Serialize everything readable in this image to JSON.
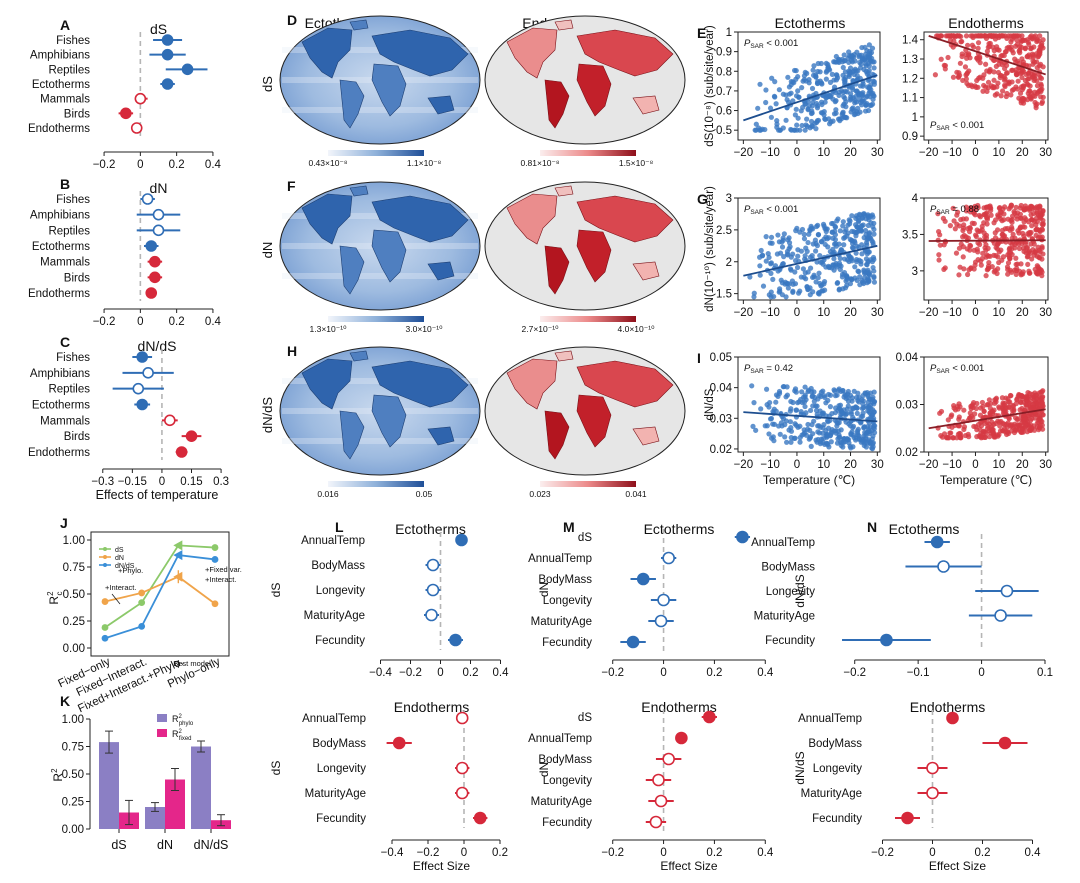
{
  "colors": {
    "ecto": "#2f6db5",
    "endo": "#d6283a",
    "blue_fill": "#3a78c2",
    "red_fill": "#d63a44",
    "dashed": "#b5b5b5",
    "purple": "#8b7fc4",
    "pink": "#e4268a",
    "green": "#8cc96a",
    "orange": "#f0a44a",
    "sky": "#3a8fd8"
  },
  "row_labels": {
    "ds": "dS",
    "dn": "dN",
    "dnds": "dN/dS"
  },
  "panel_letters": {
    "A": "A",
    "B": "B",
    "C": "C",
    "D": "D",
    "E": "E",
    "F": "F",
    "G": "G",
    "H": "H",
    "I": "I",
    "J": "J",
    "K": "K",
    "L": "L",
    "M": "M",
    "N": "N"
  },
  "abc_panels": [
    {
      "letter": "A",
      "title": "dS",
      "xlim": [
        -0.25,
        0.45
      ],
      "ticks": [
        -0.2,
        0,
        0.2,
        0.4
      ],
      "rows": [
        {
          "label": "Fishes",
          "est": 0.15,
          "lo": 0.07,
          "hi": 0.23,
          "group": "ecto",
          "filled": true
        },
        {
          "label": "Amphibians",
          "est": 0.15,
          "lo": 0.05,
          "hi": 0.25,
          "group": "ecto",
          "filled": true
        },
        {
          "label": "Reptiles",
          "est": 0.26,
          "lo": 0.14,
          "hi": 0.37,
          "group": "ecto",
          "filled": true
        },
        {
          "label": "Ectotherms",
          "est": 0.15,
          "lo": 0.11,
          "hi": 0.19,
          "group": "ecto",
          "filled": true
        },
        {
          "label": "Mammals",
          "est": 0.0,
          "lo": -0.03,
          "hi": 0.04,
          "group": "endo",
          "filled": false
        },
        {
          "label": "Birds",
          "est": -0.08,
          "lo": -0.12,
          "hi": -0.04,
          "group": "endo",
          "filled": true
        },
        {
          "label": "Endotherms",
          "est": -0.02,
          "lo": -0.05,
          "hi": 0.01,
          "group": "endo",
          "filled": false
        }
      ],
      "xlabel": ""
    },
    {
      "letter": "B",
      "title": "dN",
      "xlim": [
        -0.25,
        0.45
      ],
      "ticks": [
        -0.2,
        0,
        0.2,
        0.4
      ],
      "rows": [
        {
          "label": "Fishes",
          "est": 0.04,
          "lo": 0.0,
          "hi": 0.08,
          "group": "ecto",
          "filled": false
        },
        {
          "label": "Amphibians",
          "est": 0.1,
          "lo": -0.02,
          "hi": 0.22,
          "group": "ecto",
          "filled": false
        },
        {
          "label": "Reptiles",
          "est": 0.1,
          "lo": -0.02,
          "hi": 0.22,
          "group": "ecto",
          "filled": false
        },
        {
          "label": "Ectotherms",
          "est": 0.06,
          "lo": 0.02,
          "hi": 0.1,
          "group": "ecto",
          "filled": true
        },
        {
          "label": "Mammals",
          "est": 0.08,
          "lo": 0.04,
          "hi": 0.12,
          "group": "endo",
          "filled": true
        },
        {
          "label": "Birds",
          "est": 0.08,
          "lo": 0.04,
          "hi": 0.12,
          "group": "endo",
          "filled": true
        },
        {
          "label": "Endotherms",
          "est": 0.06,
          "lo": 0.03,
          "hi": 0.09,
          "group": "endo",
          "filled": true
        }
      ],
      "xlabel": ""
    },
    {
      "letter": "C",
      "title": "dN/dS",
      "xlim": [
        -0.38,
        0.33
      ],
      "ticks": [
        -0.3,
        -0.15,
        0,
        0.15,
        0.3
      ],
      "ticklabels": [
        "−0.3",
        "−0.15",
        "0",
        "0.15",
        "0.3"
      ],
      "rows": [
        {
          "label": "Fishes",
          "est": -0.1,
          "lo": -0.15,
          "hi": -0.05,
          "group": "ecto",
          "filled": true
        },
        {
          "label": "Amphibians",
          "est": -0.07,
          "lo": -0.2,
          "hi": 0.06,
          "group": "ecto",
          "filled": false
        },
        {
          "label": "Reptiles",
          "est": -0.12,
          "lo": -0.25,
          "hi": 0.01,
          "group": "ecto",
          "filled": false
        },
        {
          "label": "Ectotherms",
          "est": -0.1,
          "lo": -0.14,
          "hi": -0.06,
          "group": "ecto",
          "filled": true
        },
        {
          "label": "Mammals",
          "est": 0.04,
          "lo": 0.0,
          "hi": 0.08,
          "group": "endo",
          "filled": false
        },
        {
          "label": "Birds",
          "est": 0.15,
          "lo": 0.1,
          "hi": 0.2,
          "group": "endo",
          "filled": true
        },
        {
          "label": "Endotherms",
          "est": 0.1,
          "lo": 0.07,
          "hi": 0.13,
          "group": "endo",
          "filled": true
        }
      ],
      "xlabel": "Effects of temperature"
    }
  ],
  "maps": {
    "col_titles": {
      "ecto": "Ectotherms",
      "endo": "Endotherms"
    },
    "rows": [
      {
        "letter": "D",
        "label": "dS",
        "ecto_min": "0.43×10⁻⁸",
        "ecto_max": "1.1×10⁻⁸",
        "endo_min": "0.81×10⁻⁸",
        "endo_max": "1.5×10⁻⁸"
      },
      {
        "letter": "F",
        "label": "dN",
        "ecto_min": "1.3×10⁻¹⁰",
        "ecto_max": "3.0×10⁻¹⁰",
        "endo_min": "2.7×10⁻¹⁰",
        "endo_max": "4.0×10⁻¹⁰"
      },
      {
        "letter": "H",
        "label": "dN/dS",
        "ecto_min": "0.016",
        "ecto_max": "0.05",
        "endo_min": "0.023",
        "endo_max": "0.041"
      }
    ]
  },
  "scatter": {
    "col_titles": {
      "ecto": "Ectotherms",
      "endo": "Endotherms"
    },
    "xlabel": "Temperature (℃)",
    "xticks": [
      -20,
      -10,
      0,
      10,
      20,
      30
    ],
    "rows": [
      {
        "letter": "E",
        "ylabel": "dS(10⁻⁸) (sub/site/year)",
        "ecto": {
          "ylim": [
            0.45,
            1.0
          ],
          "yticks": [
            0.5,
            0.6,
            0.7,
            0.8,
            0.9,
            1.0
          ],
          "p_prefix": "P",
          "p_sub": "SAR",
          "p_value": " < 0.001",
          "p_pos": "top",
          "trend": [
            0.55,
            0.78
          ],
          "base": [
            0.5,
            0.95
          ],
          "slope": 0.0075
        },
        "endo": {
          "ylim": [
            0.88,
            1.44
          ],
          "yticks": [
            0.9,
            1.0,
            1.1,
            1.2,
            1.3,
            1.4
          ],
          "p_prefix": "P",
          "p_sub": "SAR",
          "p_value": " < 0.001",
          "p_pos": "bottom",
          "trend": [
            1.42,
            1.22
          ],
          "base": [
            0.9,
            1.42
          ],
          "slope": -0.004
        }
      },
      {
        "letter": "G",
        "ylabel": "dN(10⁻¹⁰) (sub/site/year)",
        "ecto": {
          "ylim": [
            1.4,
            3.0
          ],
          "yticks": [
            1.5,
            2.0,
            2.5,
            3.0
          ],
          "p_prefix": "P",
          "p_sub": "SAR",
          "p_value": " < 0.001",
          "p_pos": "top",
          "trend": [
            1.78,
            2.25
          ],
          "base": [
            1.45,
            2.95
          ],
          "slope": 0.012
        },
        "endo": {
          "ylim": [
            2.6,
            4.0
          ],
          "yticks": [
            3.0,
            3.5,
            4.0
          ],
          "p_prefix": "P",
          "p_sub": "SAR",
          "p_value": " = 0.88",
          "p_pos": "top",
          "trend": [
            3.41,
            3.42
          ],
          "base": [
            2.65,
            3.95
          ],
          "slope": 0.0
        }
      },
      {
        "letter": "I",
        "ylabel": "dN/dS",
        "ecto": {
          "ylim": [
            0.019,
            0.05
          ],
          "yticks": [
            0.02,
            0.03,
            0.04,
            0.05
          ],
          "p_prefix": "P",
          "p_sub": "SAR",
          "p_value": " = 0.42",
          "p_pos": "top",
          "trend": [
            0.032,
            0.029
          ],
          "base": [
            0.02,
            0.046
          ],
          "slope": -0.0001
        },
        "endo": {
          "ylim": [
            0.02,
            0.04
          ],
          "yticks": [
            0.02,
            0.03,
            0.04
          ],
          "p_prefix": "P",
          "p_sub": "SAR",
          "p_value": " < 0.001",
          "p_pos": "top",
          "trend": [
            0.025,
            0.029
          ],
          "base": [
            0.023,
            0.034
          ],
          "slope": 0.00012
        }
      }
    ]
  },
  "chart_data": [
    {
      "type": "line",
      "panel": "J",
      "ylabel": "R",
      "ylabel_sup": "2",
      "ylabel_sub": "c",
      "ylim": [
        0,
        1
      ],
      "yticks": [
        "0.00",
        "0.25",
        "0.50",
        "0.75",
        "1.00"
      ],
      "categories": [
        "Fixed−only",
        "Fixed−Interact.",
        "Fixed+Interact.+Phylo.",
        "Phylo−only"
      ],
      "series": [
        {
          "name": "dS",
          "color": "green",
          "values": [
            0.19,
            0.42,
            0.95,
            0.93
          ]
        },
        {
          "name": "dN",
          "color": "orange",
          "values": [
            0.43,
            0.51,
            0.66,
            0.41
          ]
        },
        {
          "name": "dN/dS",
          "color": "sky",
          "values": [
            0.09,
            0.2,
            0.86,
            0.82
          ]
        }
      ],
      "annotations": [
        "+Interact.",
        "+Phylo.",
        "+Fixed var.",
        "+Interact.",
        "Best model"
      ]
    },
    {
      "type": "bar",
      "panel": "K",
      "ylabel": "R",
      "ylabel_sup": "2",
      "ylim": [
        0,
        1
      ],
      "yticks": [
        "0.00",
        "0.25",
        "0.50",
        "0.75",
        "1.00"
      ],
      "categories": [
        "dS",
        "dN",
        "dN/dS"
      ],
      "series": [
        {
          "name": "R",
          "name_sub": "phylo",
          "name_sup": "2",
          "color": "purple",
          "values": [
            0.79,
            0.2,
            0.75
          ],
          "err": [
            0.1,
            0.04,
            0.05
          ]
        },
        {
          "name": "R",
          "name_sub": "fixed",
          "name_sup": "2",
          "color": "pink",
          "values": [
            0.15,
            0.45,
            0.08
          ],
          "err": [
            0.11,
            0.1,
            0.05
          ]
        }
      ]
    }
  ],
  "effect_panels": [
    {
      "letter": "L",
      "title": "Ectotherms",
      "ylabel": "dS",
      "group": "ecto",
      "xlim": [
        -0.45,
        0.45
      ],
      "ticks": [
        -0.4,
        -0.2,
        0,
        0.2,
        0.4
      ],
      "xlabel": "",
      "rows": [
        {
          "label": "AnnualTemp",
          "est": 0.14,
          "lo": 0.1,
          "hi": 0.18,
          "filled": true
        },
        {
          "label": "BodyMass",
          "est": -0.05,
          "lo": -0.1,
          "hi": 0.0,
          "filled": false
        },
        {
          "label": "Longevity",
          "est": -0.05,
          "lo": -0.1,
          "hi": 0.0,
          "filled": false
        },
        {
          "label": "MaturityAge",
          "est": -0.06,
          "lo": -0.11,
          "hi": -0.01,
          "filled": false
        },
        {
          "label": "Fecundity",
          "est": 0.1,
          "lo": 0.05,
          "hi": 0.15,
          "filled": true
        }
      ]
    },
    {
      "letter": "M",
      "title": "Ectotherms",
      "ylabel": "dN",
      "group": "ecto",
      "xlim": [
        -0.25,
        0.45
      ],
      "ticks": [
        -0.2,
        0,
        0.2,
        0.4
      ],
      "xlabel": "",
      "rows": [
        {
          "label": "dS",
          "est": 0.31,
          "lo": 0.28,
          "hi": 0.34,
          "filled": true
        },
        {
          "label": "AnnualTemp",
          "est": 0.02,
          "lo": -0.01,
          "hi": 0.05,
          "filled": false
        },
        {
          "label": "BodyMass",
          "est": -0.08,
          "lo": -0.13,
          "hi": -0.03,
          "filled": true
        },
        {
          "label": "Longevity",
          "est": 0.0,
          "lo": -0.05,
          "hi": 0.05,
          "filled": false
        },
        {
          "label": "MaturityAge",
          "est": -0.01,
          "lo": -0.06,
          "hi": 0.04,
          "filled": false
        },
        {
          "label": "Fecundity",
          "est": -0.12,
          "lo": -0.17,
          "hi": -0.07,
          "filled": true
        }
      ]
    },
    {
      "letter": "N",
      "title": "Ectotherms",
      "ylabel": "dN/dS",
      "group": "ecto",
      "xlim": [
        -0.25,
        0.1
      ],
      "ticks": [
        -0.2,
        -0.1,
        0,
        0.1
      ],
      "xlabel": "",
      "rows": [
        {
          "label": "AnnualTemp",
          "est": -0.07,
          "lo": -0.09,
          "hi": -0.05,
          "filled": true
        },
        {
          "label": "BodyMass",
          "est": -0.06,
          "lo": -0.12,
          "hi": 0.0,
          "filled": false
        },
        {
          "label": "Longevity",
          "est": 0.04,
          "lo": -0.01,
          "hi": 0.09,
          "filled": false
        },
        {
          "label": "MaturityAge",
          "est": 0.03,
          "lo": -0.02,
          "hi": 0.08,
          "filled": false
        },
        {
          "label": "Fecundity",
          "est": -0.15,
          "lo": -0.22,
          "hi": -0.08,
          "filled": true
        }
      ]
    },
    {
      "letter": "",
      "title": "Endotherms",
      "ylabel": "dS",
      "group": "endo",
      "xlim": [
        -0.5,
        0.25
      ],
      "ticks": [
        -0.4,
        -0.2,
        0,
        0.2
      ],
      "xlabel": "Effect Size",
      "rows": [
        {
          "label": "AnnualTemp",
          "est": -0.01,
          "lo": -0.03,
          "hi": 0.01,
          "filled": false
        },
        {
          "label": "BodyMass",
          "est": -0.36,
          "lo": -0.43,
          "hi": -0.29,
          "filled": true
        },
        {
          "label": "Longevity",
          "est": -0.01,
          "lo": -0.05,
          "hi": 0.03,
          "filled": false
        },
        {
          "label": "MaturityAge",
          "est": -0.01,
          "lo": -0.05,
          "hi": 0.03,
          "filled": false
        },
        {
          "label": "Fecundity",
          "est": 0.09,
          "lo": 0.05,
          "hi": 0.13,
          "filled": true
        }
      ]
    },
    {
      "letter": "",
      "title": "Endotherms",
      "ylabel": "dN",
      "group": "endo",
      "xlim": [
        -0.25,
        0.45
      ],
      "ticks": [
        -0.2,
        0,
        0.2,
        0.4
      ],
      "xlabel": "Effect Size",
      "rows": [
        {
          "label": "dS",
          "est": 0.18,
          "lo": 0.15,
          "hi": 0.21,
          "filled": true
        },
        {
          "label": "AnnualTemp",
          "est": 0.07,
          "lo": 0.05,
          "hi": 0.09,
          "filled": true
        },
        {
          "label": "BodyMass",
          "est": 0.02,
          "lo": -0.03,
          "hi": 0.07,
          "filled": false
        },
        {
          "label": "Longevity",
          "est": -0.02,
          "lo": -0.07,
          "hi": 0.03,
          "filled": false
        },
        {
          "label": "MaturityAge",
          "est": -0.01,
          "lo": -0.06,
          "hi": 0.04,
          "filled": false
        },
        {
          "label": "Fecundity",
          "est": -0.03,
          "lo": -0.07,
          "hi": 0.01,
          "filled": false
        }
      ]
    },
    {
      "letter": "",
      "title": "Endotherms",
      "ylabel": "dN/dS",
      "group": "endo",
      "xlim": [
        -0.25,
        0.45
      ],
      "ticks": [
        -0.2,
        0,
        0.2,
        0.4
      ],
      "xlabel": "Effect Size",
      "rows": [
        {
          "label": "AnnualTemp",
          "est": 0.08,
          "lo": 0.06,
          "hi": 0.1,
          "filled": true
        },
        {
          "label": "BodyMass",
          "est": 0.29,
          "lo": 0.2,
          "hi": 0.38,
          "filled": true
        },
        {
          "label": "Longevity",
          "est": 0.0,
          "lo": -0.06,
          "hi": 0.06,
          "filled": false
        },
        {
          "label": "MaturityAge",
          "est": 0.0,
          "lo": -0.06,
          "hi": 0.06,
          "filled": false
        },
        {
          "label": "Fecundity",
          "est": -0.1,
          "lo": -0.15,
          "hi": -0.05,
          "filled": true
        }
      ]
    }
  ]
}
